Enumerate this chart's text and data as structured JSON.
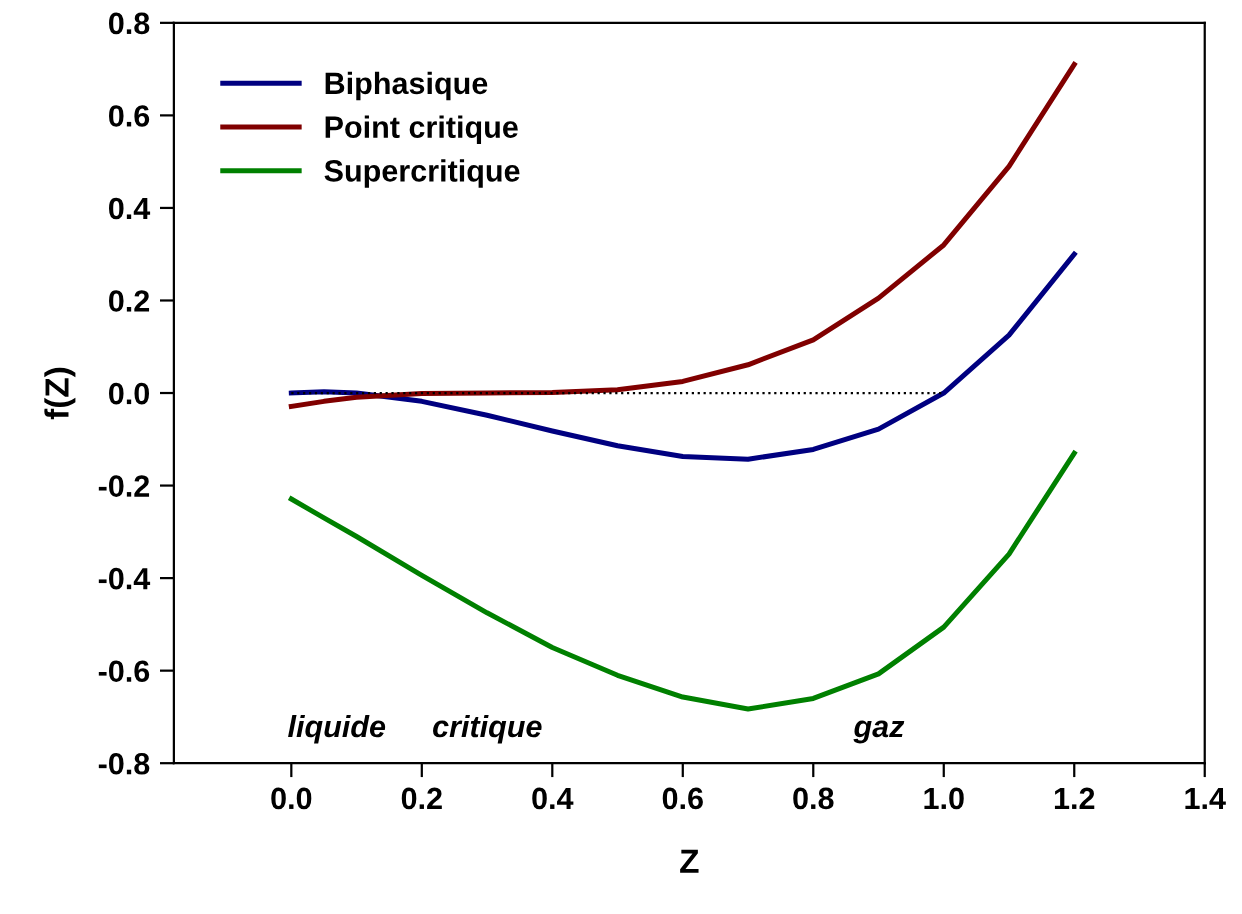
{
  "chart_data": {
    "type": "line",
    "xlabel": "Z",
    "ylabel": "f(Z)",
    "xlim": [
      -0.18,
      1.4
    ],
    "ylim": [
      -0.8,
      0.8
    ],
    "xticks": [
      {
        "value": 0,
        "label": "0.0"
      },
      {
        "value": 0.2,
        "label": "0.2"
      },
      {
        "value": 0.4,
        "label": "0.4"
      },
      {
        "value": 0.6,
        "label": "0.6"
      },
      {
        "value": 0.8,
        "label": "0.8"
      },
      {
        "value": 1.0,
        "label": "1.0"
      },
      {
        "value": 1.2,
        "label": "1.2"
      },
      {
        "value": 1.4,
        "label": "1.4"
      }
    ],
    "yticks": [
      {
        "value": -0.8,
        "label": "-0.8"
      },
      {
        "value": -0.6,
        "label": "-0.6"
      },
      {
        "value": -0.4,
        "label": "-0.4"
      },
      {
        "value": -0.2,
        "label": "-0.2"
      },
      {
        "value": 0,
        "label": "0.0"
      },
      {
        "value": 0.2,
        "label": "0.2"
      },
      {
        "value": 0.4,
        "label": "0.4"
      },
      {
        "value": 0.6,
        "label": "0.6"
      },
      {
        "value": 0.8,
        "label": "0.8"
      }
    ],
    "grid": false,
    "legend": "top left",
    "marker": "none",
    "line_style": "solid",
    "x": [
      0,
      0.05,
      0.1,
      0.2,
      0.3,
      0.4,
      0.5,
      0.6,
      0.7,
      0.8,
      0.9,
      1.0,
      1.1,
      1.2
    ],
    "series": [
      {
        "name": "Biphasique",
        "color": "#000080",
        "values": [
          0,
          0.003,
          0,
          -0.018,
          -0.048,
          -0.082,
          -0.114,
          -0.137,
          -0.143,
          -0.122,
          -0.078,
          0,
          0.125,
          0.3
        ]
      },
      {
        "name": "Point critique",
        "color": "#800000",
        "values": [
          -0.029,
          -0.018,
          -0.009,
          -0.001,
          0,
          0.001,
          0.007,
          0.025,
          0.061,
          0.115,
          0.205,
          0.32,
          0.49,
          0.71
        ]
      },
      {
        "name": "Supercritique",
        "color": "#008000",
        "values": [
          -0.229,
          -0.27,
          -0.31,
          -0.394,
          -0.475,
          -0.55,
          -0.61,
          -0.657,
          -0.683,
          -0.66,
          -0.607,
          -0.506,
          -0.348,
          -0.13
        ]
      },
      {
        "color": "#000000",
        "line_style": "dotted",
        "x": [
          0,
          1.0
        ],
        "values": [
          0,
          0
        ]
      }
    ],
    "annotations": [
      "liquide",
      "critique",
      "gaz"
    ]
  }
}
